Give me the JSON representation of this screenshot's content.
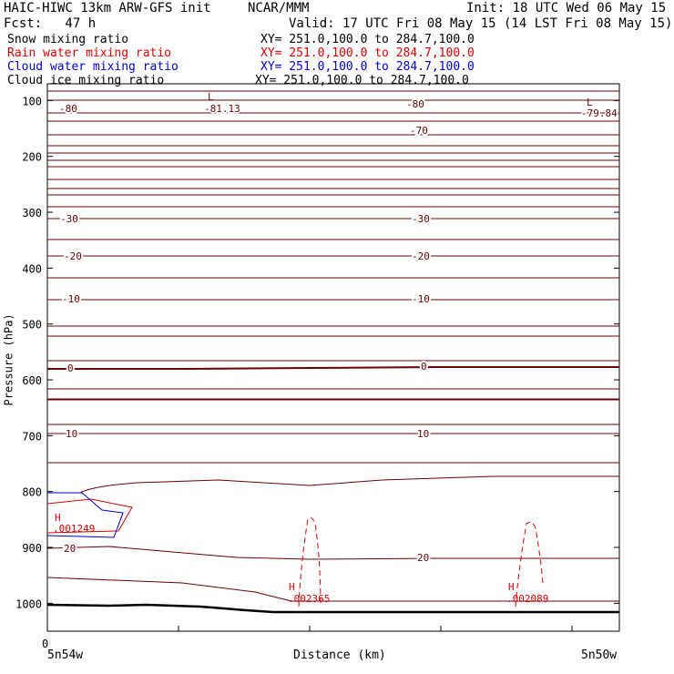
{
  "header": {
    "title": "HAIC-HIWC 13km ARW-GFS init",
    "org": "NCAR/MMM",
    "init": "Init: 18 UTC Wed 06 May 15",
    "fcst": "Fcst:   47 h",
    "valid": "Valid: 17 UTC Fri 08 May 15 (14 LST Fri 08 May 15)"
  },
  "fields": [
    {
      "label": "Snow mixing ratio",
      "xy": "XY= 251.0,100.0 to 284.7,100.0",
      "color": "#000000"
    },
    {
      "label": "Rain water mixing ratio",
      "xy": "XY= 251.0,100.0 to 284.7,100.0",
      "color": "#e00000"
    },
    {
      "label": "Cloud water mixing ratio",
      "xy": "XY= 251.0,100.0 to 284.7,100.0",
      "color": "#0000e0"
    },
    {
      "label": "Cloud ice mixing ratio",
      "xy": "XY= 251.0,100.0 to 284.7,100.0",
      "color": "#000000"
    }
  ],
  "chart_data": {
    "type": "line",
    "xlabel": "Distance (km)",
    "ylabel": "Pressure (hPa)",
    "x_tick_labels": [
      "0"
    ],
    "x_end_labels": [
      "5n54w",
      "5n50w"
    ],
    "y_ticks": [
      100,
      200,
      300,
      400,
      500,
      600,
      700,
      800,
      900,
      1000
    ],
    "ylim": [
      1050,
      70
    ],
    "y_scale": "linear",
    "temperature_isotherms": {
      "color": "#6b0000",
      "labels": [
        "-80",
        "-70",
        "-30",
        "-20",
        "-10",
        "0",
        "10",
        "20"
      ],
      "extrema": [
        {
          "type": "L",
          "value": "-81.13"
        },
        {
          "type": "L",
          "value": "-79.84"
        }
      ]
    },
    "rain_water": {
      "color": "#e00000",
      "extrema": [
        {
          "type": "H",
          "value": ".001249"
        },
        {
          "type": "H",
          "value": ".002365"
        },
        {
          "type": "H",
          "value": ".002089"
        }
      ]
    },
    "cloud_water": {
      "color": "#0000e0"
    },
    "surface": {
      "color": "#000000"
    }
  }
}
